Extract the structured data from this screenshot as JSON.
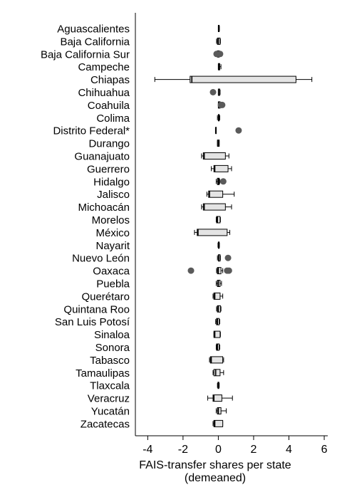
{
  "chart_data": {
    "type": "boxplot",
    "orientation": "horizontal",
    "xlabel_line1": "FAIS-transfer shares per state",
    "xlabel_line2": "(demeaned)",
    "xlim": [
      -4.7,
      6.2
    ],
    "xticks": [
      -4,
      -2,
      0,
      2,
      4,
      6
    ],
    "grid": false,
    "colors": {
      "box_fill": "#e4e4e4",
      "outlier": "#5a5a5a",
      "line": "#000000"
    },
    "categories": [
      "Aguascalientes",
      "Baja California",
      "Baja California Sur",
      "Campeche",
      "Chiapas",
      "Chihuahua",
      "Coahuila",
      "Colima",
      "Distrito Federal*",
      "Durango",
      "Guanajuato",
      "Guerrero",
      "Hidalgo",
      "Jalisco",
      "Michoacán",
      "Morelos",
      "México",
      "Nayarit",
      "Nuevo León",
      "Oaxaca",
      "Puebla",
      "Querétaro",
      "Quintana Roo",
      "San Luis Potosí",
      "Sinaloa",
      "Sonora",
      "Tabasco",
      "Tamaulipas",
      "Tlaxcala",
      "Veracruz",
      "Yucatán",
      "Zacatecas"
    ],
    "boxes": [
      {
        "min": 0.0,
        "q1": 0.0,
        "median": 0.02,
        "q3": 0.05,
        "max": 0.06,
        "outliers": []
      },
      {
        "min": -0.1,
        "q1": -0.05,
        "median": 0.0,
        "q3": 0.1,
        "max": 0.12,
        "outliers": []
      },
      {
        "min": -0.08,
        "q1": -0.05,
        "median": 0.0,
        "q3": 0.05,
        "max": 0.08,
        "outliers": [
          -0.1,
          0.0,
          0.1
        ]
      },
      {
        "min": 0.0,
        "q1": 0.0,
        "median": 0.03,
        "q3": 0.08,
        "max": 0.15,
        "outliers": []
      },
      {
        "min": -3.6,
        "q1": -1.6,
        "median": -1.5,
        "q3": 4.4,
        "max": 5.3,
        "outliers": []
      },
      {
        "min": 0.0,
        "q1": 0.0,
        "median": 0.02,
        "q3": 0.08,
        "max": 0.1,
        "outliers": [
          -0.3
        ]
      },
      {
        "min": 0.0,
        "q1": 0.0,
        "median": 0.02,
        "q3": 0.1,
        "max": 0.12,
        "outliers": [
          0.15,
          0.22
        ]
      },
      {
        "min": -0.05,
        "q1": 0.0,
        "median": 0.02,
        "q3": 0.05,
        "max": 0.08,
        "outliers": []
      },
      {
        "min": -0.15,
        "q1": -0.15,
        "median": -0.15,
        "q3": -0.15,
        "max": -0.15,
        "outliers": [
          1.15
        ]
      },
      {
        "min": -0.05,
        "q1": -0.05,
        "median": 0.0,
        "q3": 0.05,
        "max": 0.05,
        "outliers": []
      },
      {
        "min": -0.95,
        "q1": -0.85,
        "median": -0.8,
        "q3": 0.4,
        "max": 0.6,
        "outliers": []
      },
      {
        "min": -0.4,
        "q1": -0.25,
        "median": -0.2,
        "q3": 0.55,
        "max": 0.75,
        "outliers": []
      },
      {
        "min": -0.12,
        "q1": -0.05,
        "median": 0.0,
        "q3": 0.05,
        "max": 0.08,
        "outliers": [
          0.28
        ]
      },
      {
        "min": -0.65,
        "q1": -0.55,
        "median": -0.5,
        "q3": 0.25,
        "max": 0.9,
        "outliers": []
      },
      {
        "min": -0.95,
        "q1": -0.85,
        "median": -0.8,
        "q3": 0.4,
        "max": 0.75,
        "outliers": []
      },
      {
        "min": -0.12,
        "q1": -0.1,
        "median": -0.05,
        "q3": 0.1,
        "max": 0.12,
        "outliers": []
      },
      {
        "min": -1.35,
        "q1": -1.2,
        "median": -1.15,
        "q3": 0.5,
        "max": 0.65,
        "outliers": []
      },
      {
        "min": -0.02,
        "q1": 0.0,
        "median": 0.02,
        "q3": 0.05,
        "max": 0.06,
        "outliers": []
      },
      {
        "min": -0.05,
        "q1": 0.0,
        "median": 0.02,
        "q3": 0.1,
        "max": 0.12,
        "outliers": [
          0.55
        ]
      },
      {
        "min": -0.1,
        "q1": -0.05,
        "median": 0.0,
        "q3": 0.15,
        "max": 0.25,
        "outliers": [
          -1.55,
          0.5,
          0.6
        ]
      },
      {
        "min": -0.12,
        "q1": -0.05,
        "median": 0.0,
        "q3": 0.1,
        "max": 0.18,
        "outliers": []
      },
      {
        "min": -0.3,
        "q1": -0.25,
        "median": -0.2,
        "q3": 0.1,
        "max": 0.25,
        "outliers": []
      },
      {
        "min": -0.1,
        "q1": -0.05,
        "median": 0.0,
        "q3": 0.12,
        "max": 0.15,
        "outliers": []
      },
      {
        "min": -0.15,
        "q1": -0.1,
        "median": -0.05,
        "q3": 0.05,
        "max": 0.08,
        "outliers": []
      },
      {
        "min": -0.25,
        "q1": -0.25,
        "median": -0.2,
        "q3": 0.1,
        "max": 0.12,
        "outliers": []
      },
      {
        "min": -0.12,
        "q1": -0.1,
        "median": -0.05,
        "q3": 0.05,
        "max": 0.08,
        "outliers": []
      },
      {
        "min": -0.5,
        "q1": -0.45,
        "median": -0.4,
        "q3": 0.25,
        "max": 0.3,
        "outliers": []
      },
      {
        "min": -0.3,
        "q1": -0.25,
        "median": -0.15,
        "q3": 0.1,
        "max": 0.3,
        "outliers": []
      },
      {
        "min": -0.05,
        "q1": -0.02,
        "median": 0.0,
        "q3": 0.03,
        "max": 0.05,
        "outliers": []
      },
      {
        "min": -0.6,
        "q1": -0.3,
        "median": -0.25,
        "q3": 0.2,
        "max": 0.8,
        "outliers": []
      },
      {
        "min": -0.12,
        "q1": -0.05,
        "median": 0.0,
        "q3": 0.15,
        "max": 0.45,
        "outliers": []
      },
      {
        "min": -0.3,
        "q1": -0.25,
        "median": -0.2,
        "q3": 0.25,
        "max": 0.25,
        "outliers": []
      }
    ]
  }
}
